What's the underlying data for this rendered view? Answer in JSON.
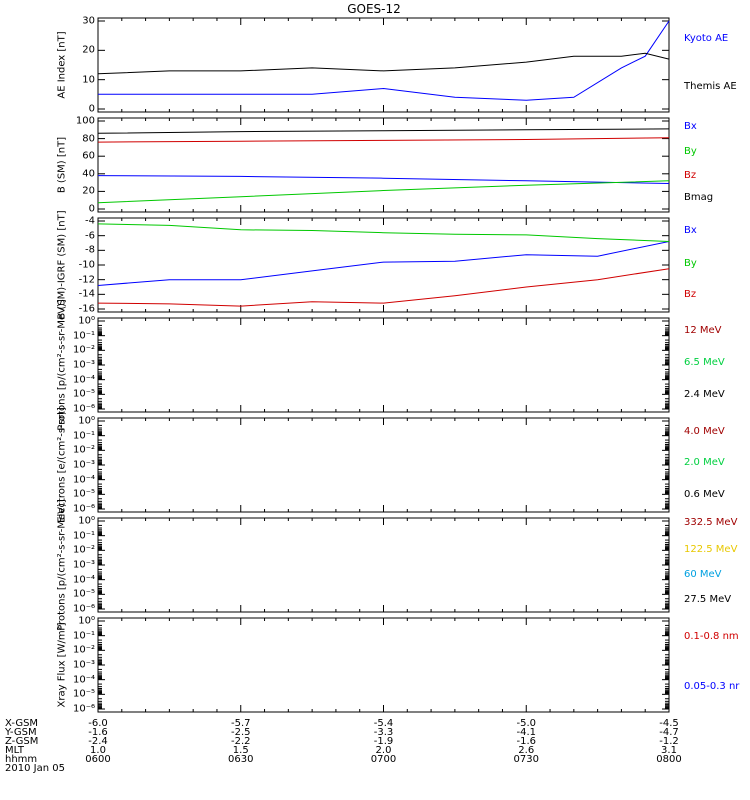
{
  "title": "GOES-12",
  "colors": {
    "black": "#000000",
    "blue": "#0000ff",
    "green": "#00c800",
    "red": "#d00000",
    "darkred": "#a00000",
    "gold": "#e8c800",
    "cyan": "#00a0e0",
    "lightgreen": "#00d040"
  },
  "chart_data": [
    {
      "type": "line",
      "panel": "ae",
      "ylabel": "AE Index [nT]",
      "ylim": [
        0,
        30
      ],
      "yticks": [
        "0",
        "10",
        "20",
        "30"
      ],
      "x": [
        0,
        15,
        30,
        45,
        60,
        75,
        90,
        100,
        110,
        115,
        120
      ],
      "series": [
        {
          "name": "Kyoto AE",
          "color": "#0000ff",
          "values": [
            5,
            5,
            5,
            5,
            7,
            4,
            3,
            4,
            14,
            18,
            30
          ]
        },
        {
          "name": "Themis AE",
          "color": "#000000",
          "values": [
            12,
            13,
            13,
            14,
            13,
            14,
            16,
            18,
            18,
            19,
            17
          ]
        }
      ]
    },
    {
      "type": "line",
      "panel": "b",
      "ylabel": "B (SM) [nT]",
      "ylim": [
        0,
        100
      ],
      "yticks": [
        "0",
        "20",
        "40",
        "60",
        "80",
        "100"
      ],
      "x": [
        0,
        30,
        60,
        90,
        120
      ],
      "series": [
        {
          "name": "Bx",
          "color": "#0000ff",
          "values": [
            38,
            37,
            35,
            32,
            29
          ]
        },
        {
          "name": "By",
          "color": "#00c800",
          "values": [
            7,
            14,
            21,
            27,
            32
          ]
        },
        {
          "name": "Bz",
          "color": "#d00000",
          "values": [
            76,
            77,
            78,
            79,
            81
          ]
        },
        {
          "name": "Bmag",
          "color": "#000000",
          "values": [
            86,
            88,
            89,
            90,
            91
          ]
        }
      ]
    },
    {
      "type": "line",
      "panel": "bdiff",
      "ylabel": "B (SM)-IGRF (SM) [nT]",
      "ylim": [
        -16,
        -4
      ],
      "yticks": [
        "-16",
        "-14",
        "-12",
        "-10",
        "-8",
        "-6",
        "-4"
      ],
      "x": [
        0,
        15,
        30,
        45,
        60,
        75,
        90,
        105,
        120
      ],
      "series": [
        {
          "name": "Bx",
          "color": "#0000ff",
          "values": [
            -12.8,
            -12.0,
            -12.0,
            -10.8,
            -9.6,
            -9.5,
            -8.6,
            -8.8,
            -6.8
          ]
        },
        {
          "name": "By",
          "color": "#00c800",
          "values": [
            -4.4,
            -4.6,
            -5.2,
            -5.3,
            -5.6,
            -5.8,
            -5.9,
            -6.4,
            -6.8
          ]
        },
        {
          "name": "Bz",
          "color": "#d00000",
          "values": [
            -15.2,
            -15.3,
            -15.6,
            -15.0,
            -15.2,
            -14.2,
            -13.0,
            -12.0,
            -10.5
          ]
        }
      ]
    },
    {
      "type": "line",
      "panel": "protons1",
      "ylabel": "Protons [p/(cm²-s-sr-MeV)]",
      "scale": "log",
      "ylim": [
        1e-06,
        1
      ],
      "yticks": [
        "10⁰",
        "10⁻¹",
        "10⁻²",
        "10⁻³",
        "10⁻⁴",
        "10⁻⁵",
        "10⁻⁶"
      ],
      "series": [
        {
          "name": "12 MeV",
          "color": "#a00000",
          "values": []
        },
        {
          "name": "6.5 MeV",
          "color": "#00d040",
          "values": []
        },
        {
          "name": "2.4 MeV",
          "color": "#000000",
          "values": []
        }
      ]
    },
    {
      "type": "line",
      "panel": "electrons",
      "ylabel": "Electrons [e/(cm²-s-sr)]",
      "scale": "log",
      "ylim": [
        1e-06,
        1
      ],
      "yticks": [
        "10⁰",
        "10⁻¹",
        "10⁻²",
        "10⁻³",
        "10⁻⁴",
        "10⁻⁵",
        "10⁻⁶"
      ],
      "series": [
        {
          "name": "4.0 MeV",
          "color": "#a00000",
          "values": []
        },
        {
          "name": "2.0 MeV",
          "color": "#00d040",
          "values": []
        },
        {
          "name": "0.6 MeV",
          "color": "#000000",
          "values": []
        }
      ]
    },
    {
      "type": "line",
      "panel": "protons2",
      "ylabel": "Protons [p/(cm²-s-sr-MeV)]",
      "scale": "log",
      "ylim": [
        1e-06,
        1
      ],
      "yticks": [
        "10⁰",
        "10⁻¹",
        "10⁻²",
        "10⁻³",
        "10⁻⁴",
        "10⁻⁵",
        "10⁻⁶"
      ],
      "series": [
        {
          "name": "332.5 MeV",
          "color": "#a00000",
          "values": []
        },
        {
          "name": "122.5 MeV",
          "color": "#e8c800",
          "values": []
        },
        {
          "name": "60 MeV",
          "color": "#00a0e0",
          "values": []
        },
        {
          "name": "27.5 MeV",
          "color": "#000000",
          "values": []
        }
      ]
    },
    {
      "type": "line",
      "panel": "xray",
      "ylabel": "Xray Flux [W/m²]",
      "scale": "log",
      "ylim": [
        1e-06,
        1
      ],
      "yticks": [
        "10⁰",
        "10⁻¹",
        "10⁻²",
        "10⁻³",
        "10⁻⁴",
        "10⁻⁵",
        "10⁻⁶"
      ],
      "series": [
        {
          "name": "0.1-0.8 nm",
          "color": "#d00000",
          "values": []
        },
        {
          "name": "0.05-0.3 nr",
          "color": "#0000ff",
          "values": []
        }
      ]
    }
  ],
  "orbit_table": {
    "labels": [
      "X-GSM",
      "Y-GSM",
      "Z-GSM",
      "MLT",
      "hhmm"
    ],
    "columns": [
      [
        "-6.0",
        "-1.6",
        "-2.4",
        "1.0",
        "0600"
      ],
      [
        "-5.7",
        "-2.5",
        "-2.2",
        "1.5",
        "0630"
      ],
      [
        "-5.4",
        "-3.3",
        "-1.9",
        "2.0",
        "0700"
      ],
      [
        "-5.0",
        "-4.1",
        "-1.6",
        "2.6",
        "0730"
      ],
      [
        "-4.5",
        "-4.7",
        "-1.2",
        "3.1",
        "0800"
      ]
    ]
  },
  "date": "2010 Jan 05"
}
